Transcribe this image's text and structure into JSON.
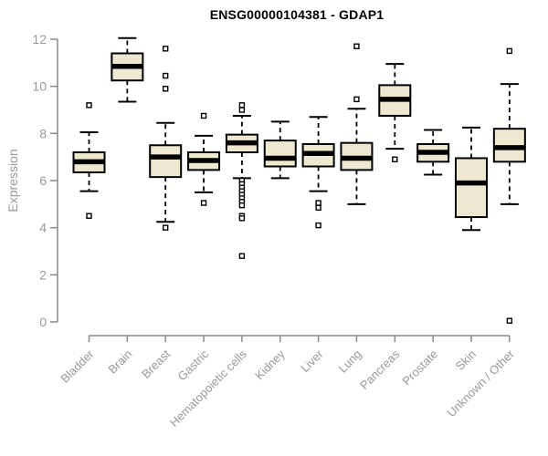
{
  "chart_data": {
    "type": "boxplot",
    "title": "ENSG00000104381 - GDAP1",
    "xlabel": "",
    "ylabel": "Expression",
    "ylim": [
      0,
      12
    ],
    "yticks": [
      0,
      2,
      4,
      6,
      8,
      10,
      12
    ],
    "grid": false,
    "legend": "none",
    "categories": [
      "Bladder",
      "Brain",
      "Breast",
      "Gastric",
      "Hematopoietic cells",
      "Kidney",
      "Liver",
      "Lung",
      "Pancreas",
      "Prostate",
      "Skin",
      "Unknown / Other"
    ],
    "series": [
      {
        "category": "Bladder",
        "whisker_low": 5.55,
        "q1": 6.35,
        "median": 6.8,
        "q3": 7.2,
        "whisker_high": 8.05,
        "outliers": [
          9.2,
          4.5
        ]
      },
      {
        "category": "Brain",
        "whisker_low": 9.35,
        "q1": 10.25,
        "median": 10.85,
        "q3": 11.4,
        "whisker_high": 12.05,
        "outliers": []
      },
      {
        "category": "Breast",
        "whisker_low": 4.25,
        "q1": 6.15,
        "median": 7.0,
        "q3": 7.5,
        "whisker_high": 8.45,
        "outliers": [
          11.6,
          10.45,
          9.9,
          4.0
        ]
      },
      {
        "category": "Gastric",
        "whisker_low": 5.5,
        "q1": 6.45,
        "median": 6.85,
        "q3": 7.2,
        "whisker_high": 7.9,
        "outliers": [
          8.75,
          5.05
        ]
      },
      {
        "category": "Hematopoietic cells",
        "whisker_low": 6.1,
        "q1": 7.2,
        "median": 7.6,
        "q3": 7.95,
        "whisker_high": 8.75,
        "outliers": [
          9.2,
          9.0,
          6.0,
          5.85,
          5.7,
          5.55,
          5.4,
          5.25,
          5.1,
          4.95,
          4.5,
          4.4,
          2.8
        ]
      },
      {
        "category": "Kidney",
        "whisker_low": 6.1,
        "q1": 6.6,
        "median": 6.95,
        "q3": 7.7,
        "whisker_high": 8.5,
        "outliers": []
      },
      {
        "category": "Liver",
        "whisker_low": 5.55,
        "q1": 6.6,
        "median": 7.15,
        "q3": 7.55,
        "whisker_high": 8.7,
        "outliers": [
          5.05,
          4.85,
          4.1
        ]
      },
      {
        "category": "Lung",
        "whisker_low": 5.0,
        "q1": 6.45,
        "median": 6.95,
        "q3": 7.6,
        "whisker_high": 9.05,
        "outliers": [
          11.7,
          9.45
        ]
      },
      {
        "category": "Pancreas",
        "whisker_low": 7.35,
        "q1": 8.75,
        "median": 9.45,
        "q3": 10.05,
        "whisker_high": 10.95,
        "outliers": [
          6.9
        ]
      },
      {
        "category": "Prostate",
        "whisker_low": 6.25,
        "q1": 6.8,
        "median": 7.2,
        "q3": 7.55,
        "whisker_high": 8.15,
        "outliers": []
      },
      {
        "category": "Skin",
        "whisker_low": 3.9,
        "q1": 4.45,
        "median": 5.9,
        "q3": 6.95,
        "whisker_high": 8.25,
        "outliers": []
      },
      {
        "category": "Unknown / Other",
        "whisker_low": 5.0,
        "q1": 6.8,
        "median": 7.4,
        "q3": 8.2,
        "whisker_high": 10.1,
        "outliers": [
          11.5,
          0.05
        ]
      }
    ],
    "colors": {
      "box_fill": "#EFE8D0",
      "box_stroke": "#000000",
      "median": "#000000",
      "axis": "#888888",
      "tick_label": "#999999",
      "title": "#000000",
      "outlier_fill": "#FFFFFF",
      "background": "#FFFFFF"
    }
  }
}
